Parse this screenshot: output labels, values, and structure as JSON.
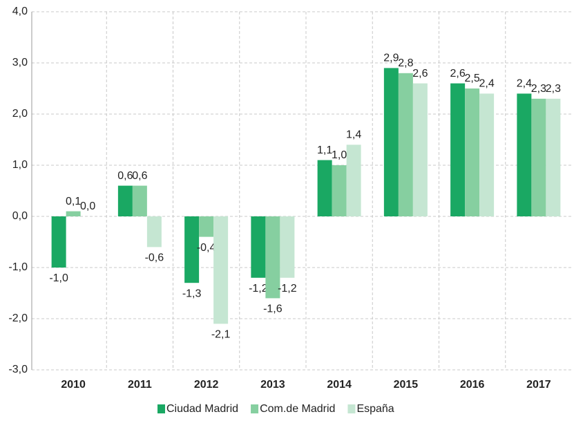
{
  "chart_data": {
    "type": "bar",
    "categories": [
      "2010",
      "2011",
      "2012",
      "2013",
      "2014",
      "2015",
      "2016",
      "2017"
    ],
    "series": [
      {
        "name": "Ciudad Madrid",
        "color": "#1aa863",
        "values": [
          -1.0,
          0.6,
          -1.3,
          -1.2,
          1.1,
          2.9,
          2.6,
          2.4
        ],
        "value_labels": [
          "-1,0",
          "0,6",
          "-1,3",
          "-1,2",
          "1,1",
          "2,9",
          "2,6",
          "2,4"
        ]
      },
      {
        "name": "Com.de Madrid",
        "color": "#86cfa0",
        "values": [
          0.1,
          0.6,
          -0.4,
          -1.6,
          1.0,
          2.8,
          2.5,
          2.3
        ],
        "value_labels": [
          "0,1",
          "0,6",
          "-0,4",
          "-1,6",
          "1,0",
          "2,8",
          "2,5",
          "2,3"
        ]
      },
      {
        "name": "España",
        "color": "#c5e6d2",
        "values": [
          0.0,
          -0.6,
          -2.1,
          -1.2,
          1.4,
          2.6,
          2.4,
          2.3
        ],
        "value_labels": [
          "0,0",
          "-0,6",
          "-2,1",
          "-1,2",
          "1,4",
          "2,6",
          "2,4",
          "2,3"
        ]
      }
    ],
    "ylim": [
      -3,
      4
    ],
    "yticks": [
      {
        "value": -3,
        "label": "-3,0"
      },
      {
        "value": -2,
        "label": "-2,0"
      },
      {
        "value": -1,
        "label": "-1,0"
      },
      {
        "value": 0,
        "label": "0,0"
      },
      {
        "value": 1,
        "label": "1,0"
      },
      {
        "value": 2,
        "label": "2,0"
      },
      {
        "value": 3,
        "label": "3,0"
      },
      {
        "value": 4,
        "label": "4,0"
      }
    ],
    "grid": true,
    "legend": "bottom"
  }
}
